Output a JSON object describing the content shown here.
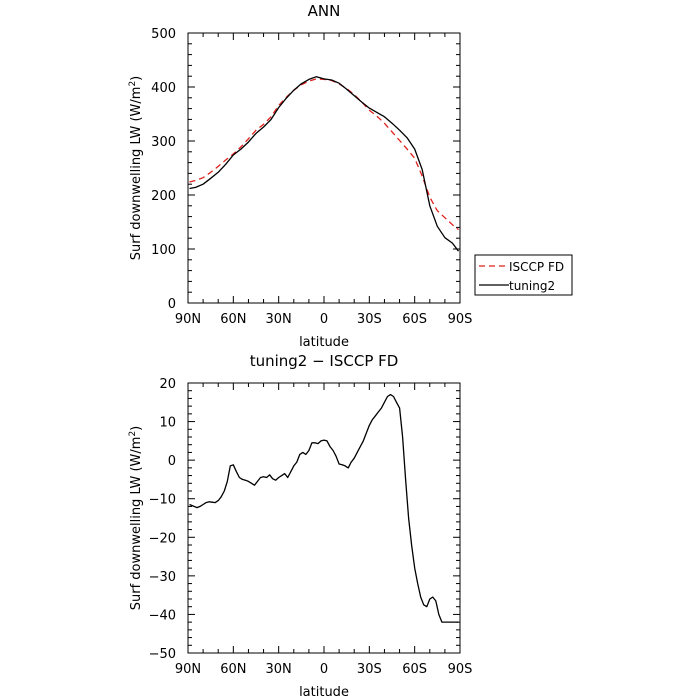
{
  "chart_data": [
    {
      "type": "line",
      "title": "ANN",
      "xlabel": "latitude",
      "ylabel": "Surf downwelling LW (W/m",
      "ylabel_sup": "2",
      "ylabel_end": ")",
      "x_ticks": [
        -90,
        -60,
        -30,
        0,
        30,
        60,
        90
      ],
      "x_tick_labels": [
        "90N",
        "60N",
        "30N",
        "0",
        "30S",
        "60S",
        "90S"
      ],
      "y_ticks": [
        0,
        100,
        200,
        300,
        400,
        500
      ],
      "y_tick_labels": [
        "0",
        "100",
        "200",
        "300",
        "400",
        "500"
      ],
      "xlim": [
        -90,
        90
      ],
      "ylim": [
        0,
        500
      ],
      "grid": false,
      "legend": "outside-right",
      "series": [
        {
          "name": "ISCCP FD",
          "color": "#e0201b",
          "dash": "dashed",
          "x": [
            -89,
            -85,
            -80,
            -75,
            -70,
            -65,
            -60,
            -55,
            -50,
            -45,
            -40,
            -35,
            -30,
            -25,
            -20,
            -15,
            -10,
            -5,
            0,
            5,
            10,
            15,
            20,
            25,
            30,
            35,
            40,
            45,
            50,
            55,
            60,
            65,
            70,
            75,
            80,
            85,
            89
          ],
          "values": [
            224,
            227,
            232,
            242,
            253,
            265,
            276,
            289,
            304,
            320,
            331,
            345,
            366,
            381,
            394,
            404,
            411,
            415,
            414,
            412,
            406,
            397,
            386,
            372,
            357,
            346,
            333,
            317,
            301,
            285,
            268,
            235,
            196,
            171,
            158,
            145,
            136
          ]
        },
        {
          "name": "tuning2",
          "color": "#000000",
          "dash": "solid",
          "x": [
            -89,
            -85,
            -80,
            -75,
            -70,
            -65,
            -60,
            -55,
            -50,
            -45,
            -40,
            -35,
            -30,
            -25,
            -20,
            -15,
            -10,
            -5,
            0,
            5,
            10,
            15,
            20,
            25,
            30,
            35,
            40,
            45,
            50,
            55,
            60,
            65,
            70,
            75,
            80,
            85,
            89
          ],
          "values": [
            212,
            214,
            220,
            231,
            242,
            257,
            274,
            285,
            298,
            314,
            326,
            340,
            362,
            379,
            394,
            406,
            414,
            419,
            415,
            413,
            407,
            396,
            384,
            372,
            361,
            353,
            345,
            333,
            320,
            306,
            285,
            247,
            180,
            142,
            121,
            111,
            96
          ]
        }
      ]
    },
    {
      "type": "line",
      "title": "tuning2 − ISCCP FD",
      "xlabel": "latitude",
      "ylabel": "Surf downwelling LW (W/m",
      "ylabel_sup": "2",
      "ylabel_end": ")",
      "x_ticks": [
        -90,
        -60,
        -30,
        0,
        30,
        60,
        90
      ],
      "x_tick_labels": [
        "90N",
        "60N",
        "30N",
        "0",
        "30S",
        "60S",
        "90S"
      ],
      "y_ticks": [
        -50,
        -40,
        -30,
        -20,
        -10,
        0,
        10,
        20
      ],
      "y_tick_labels": [
        "−50",
        "−40",
        "−30",
        "−20",
        "−10",
        "0",
        "10",
        "20"
      ],
      "xlim": [
        -90,
        90
      ],
      "ylim": [
        -50,
        20
      ],
      "grid": false,
      "series": [
        {
          "color": "#000000",
          "dash": "solid",
          "x": [
            -89,
            -86,
            -84,
            -82,
            -80,
            -78,
            -76,
            -74,
            -72,
            -70,
            -68,
            -66,
            -64,
            -62,
            -60,
            -58,
            -56,
            -54,
            -52,
            -50,
            -48,
            -46,
            -44,
            -42,
            -40,
            -38,
            -36,
            -34,
            -32,
            -30,
            -28,
            -26,
            -24,
            -22,
            -20,
            -18,
            -16,
            -14,
            -12,
            -10,
            -8,
            -6,
            -4,
            -2,
            0,
            2,
            4,
            6,
            8,
            10,
            12,
            14,
            16,
            18,
            20,
            22,
            24,
            26,
            28,
            30,
            32,
            34,
            36,
            38,
            40,
            42,
            44,
            46,
            48,
            50,
            52,
            54,
            56,
            58,
            60,
            62,
            64,
            66,
            68,
            70,
            72,
            74,
            76,
            78,
            80,
            82,
            84,
            86,
            88,
            89
          ],
          "values": [
            -11.5,
            -12.0,
            -12.3,
            -12.0,
            -11.5,
            -11.0,
            -10.8,
            -10.9,
            -11.0,
            -10.5,
            -9.5,
            -8.0,
            -5.5,
            -1.5,
            -1.2,
            -3.0,
            -4.5,
            -5.0,
            -5.2,
            -5.5,
            -6.0,
            -6.5,
            -5.5,
            -4.5,
            -4.3,
            -4.5,
            -3.8,
            -4.8,
            -5.2,
            -4.5,
            -4.0,
            -3.5,
            -4.5,
            -3.0,
            -1.5,
            -0.5,
            1.5,
            2.0,
            1.5,
            2.5,
            4.5,
            4.5,
            4.3,
            5.0,
            5.2,
            5.0,
            3.5,
            2.5,
            1.0,
            -1.0,
            -1.2,
            -1.5,
            -2.0,
            -0.5,
            0.5,
            2.0,
            3.5,
            5.0,
            7.0,
            9.0,
            10.5,
            11.5,
            12.5,
            13.5,
            15.0,
            16.5,
            17.0,
            16.5,
            15.0,
            13.5,
            6.0,
            -5.0,
            -15.0,
            -22.0,
            -28.0,
            -32.0,
            -35.5,
            -37.5,
            -38.0,
            -36.0,
            -35.5,
            -36.5,
            -40.0,
            -42.0,
            -42.0,
            -42.0,
            -42.0,
            -42.0,
            -42.0,
            -42.0
          ]
        }
      ]
    }
  ]
}
